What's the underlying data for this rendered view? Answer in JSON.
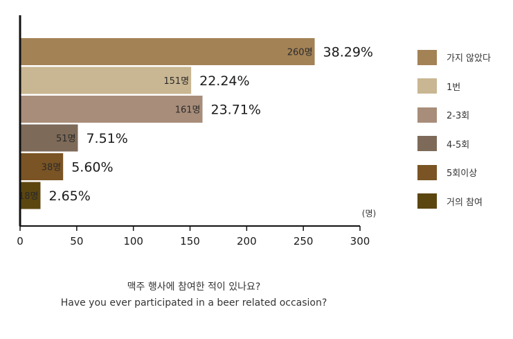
{
  "chart_data": {
    "type": "bar",
    "orientation": "horizontal",
    "categories": [
      "가지 않았다",
      "1번",
      "2-3회",
      "4-5회",
      "5회이상",
      "거의 참여"
    ],
    "values": [
      260,
      151,
      161,
      51,
      38,
      18
    ],
    "value_labels": [
      "260명",
      "151명",
      "161명",
      "51명",
      "38명",
      "18명"
    ],
    "percent_labels": [
      "38.29%",
      "22.24%",
      "23.71%",
      "7.51%",
      "5.60%",
      "2.65%"
    ],
    "colors": [
      "#a38256",
      "#c9b692",
      "#a88d7a",
      "#7d6a58",
      "#7a5424",
      "#5c4610"
    ],
    "xlim": [
      0,
      300
    ],
    "x_ticks": [
      "0",
      "50",
      "100",
      "150",
      "200",
      "250",
      "300"
    ],
    "unit_label": "(명)",
    "grid": false,
    "legend_position": "right",
    "title": "맥주 행사에 참여한 적이 있나요?",
    "subtitle": "Have you ever participated in a beer related occasion?"
  }
}
